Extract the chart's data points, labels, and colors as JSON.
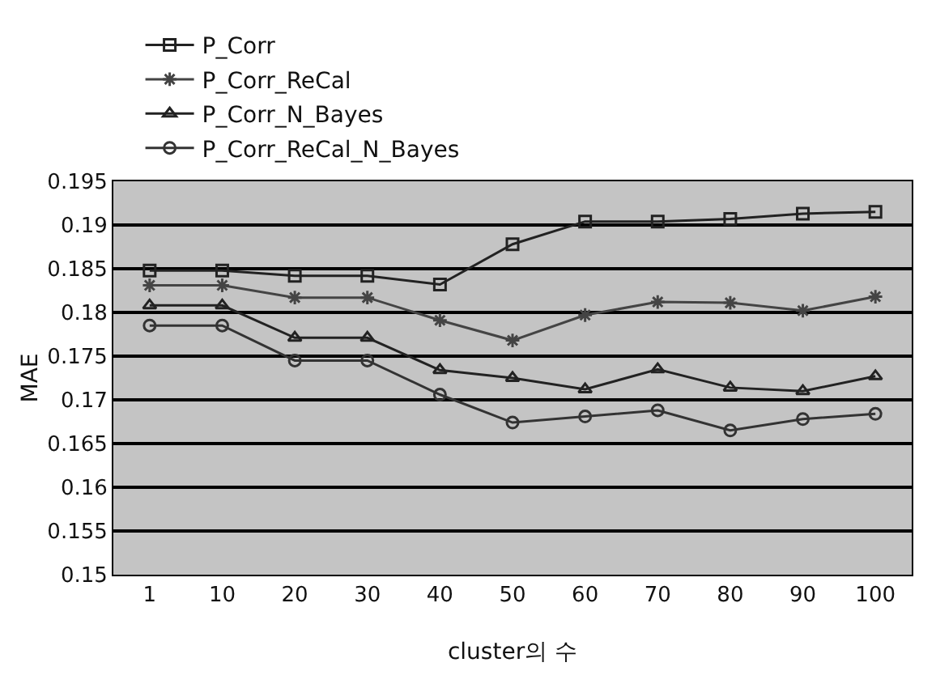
{
  "chart_data": {
    "type": "line",
    "xlabel": "cluster의 수",
    "ylabel": "MAE",
    "categories": [
      "1",
      "10",
      "20",
      "30",
      "40",
      "50",
      "60",
      "70",
      "80",
      "90",
      "100"
    ],
    "series": [
      {
        "name": "P_Corr",
        "color": "#222222",
        "marker": "square",
        "values": [
          0.1848,
          0.1848,
          0.1842,
          0.1842,
          0.1832,
          0.1878,
          0.1904,
          0.1904,
          0.1907,
          0.1913,
          0.1915
        ]
      },
      {
        "name": "P_Corr_ReCal",
        "color": "#444444",
        "marker": "cross",
        "values": [
          0.1831,
          0.1831,
          0.1817,
          0.1817,
          0.1791,
          0.1768,
          0.1797,
          0.1812,
          0.1811,
          0.1802,
          0.1818
        ]
      },
      {
        "name": "P_Corr_N_Bayes",
        "color": "#222222",
        "marker": "triangle",
        "values": [
          0.1808,
          0.1808,
          0.1771,
          0.1771,
          0.1734,
          0.1725,
          0.1712,
          0.1735,
          0.1714,
          0.171,
          0.1727
        ]
      },
      {
        "name": "P_Corr_ReCal_N_Bayes",
        "color": "#333333",
        "marker": "circle",
        "values": [
          0.1785,
          0.1785,
          0.1745,
          0.1745,
          0.1706,
          0.1674,
          0.1681,
          0.1688,
          0.1665,
          0.1678,
          0.1684
        ]
      }
    ],
    "ylim": [
      0.15,
      0.195
    ],
    "yticks": [
      0.15,
      0.155,
      0.16,
      0.165,
      0.17,
      0.175,
      0.18,
      0.185,
      0.19,
      0.195
    ],
    "grid": "y",
    "legend": "top",
    "line_style": "solid"
  }
}
